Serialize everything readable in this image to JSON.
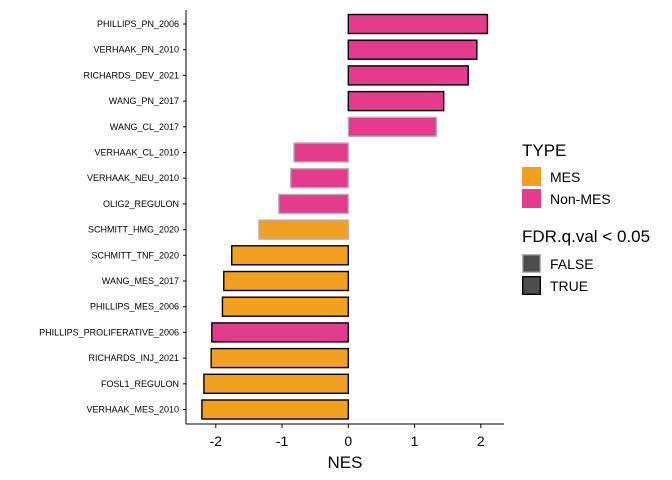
{
  "chart_data": {
    "type": "bar",
    "orientation": "horizontal",
    "xlabel": "NES",
    "ylabel": "",
    "xlim": [
      -2.45,
      2.35
    ],
    "x_ticks": [
      -2,
      -1,
      0,
      1,
      2
    ],
    "x_tick_labels": [
      "-2",
      "-1",
      "0",
      "1",
      "2"
    ],
    "grid": false,
    "legend_position": "right",
    "categories": [
      "PHILLIPS_PN_2006",
      "VERHAAK_PN_2010",
      "RICHARDS_DEV_2021",
      "WANG_PN_2017",
      "WANG_CL_2017",
      "VERHAAK_CL_2010",
      "VERHAAK_NEU_2010",
      "OLIG2_REGULON",
      "SCHMITT_HMG_2020",
      "SCHMITT_TNF_2020",
      "WANG_MES_2017",
      "PHILLIPS_MES_2006",
      "PHILLIPS_PROLIFERATIVE_2006",
      "RICHARDS_INJ_2021",
      "FOSL1_REGULON",
      "VERHAAK_MES_2010"
    ],
    "values": [
      2.1,
      1.94,
      1.81,
      1.44,
      1.33,
      -0.82,
      -0.87,
      -1.05,
      -1.35,
      -1.76,
      -1.88,
      -1.9,
      -2.06,
      -2.07,
      -2.18,
      -2.21
    ],
    "type_group": [
      "Non-MES",
      "Non-MES",
      "Non-MES",
      "Non-MES",
      "Non-MES",
      "Non-MES",
      "Non-MES",
      "Non-MES",
      "MES",
      "MES",
      "MES",
      "MES",
      "Non-MES",
      "MES",
      "MES",
      "MES"
    ],
    "fdr_significant": [
      "TRUE",
      "TRUE",
      "TRUE",
      "TRUE",
      "FALSE",
      "FALSE",
      "FALSE",
      "FALSE",
      "FALSE",
      "TRUE",
      "TRUE",
      "TRUE",
      "TRUE",
      "TRUE",
      "TRUE",
      "TRUE"
    ],
    "legend": {
      "type_title": "TYPE",
      "type_entries": [
        {
          "label": "MES",
          "color": "#F2A020"
        },
        {
          "label": "Non-MES",
          "color": "#E43B8D"
        }
      ],
      "fdr_title": "FDR.q.val < 0.05",
      "fdr_entries": [
        {
          "label": "FALSE",
          "outline": "#B3B3B3"
        },
        {
          "label": "TRUE",
          "outline": "#000000"
        }
      ]
    },
    "colors": {
      "MES": "#F2A020",
      "Non-MES": "#E43B8D",
      "outline_FALSE": "#B3B3B3",
      "outline_TRUE": "#000000",
      "legend_key_fill": "#4D4D4D"
    }
  }
}
